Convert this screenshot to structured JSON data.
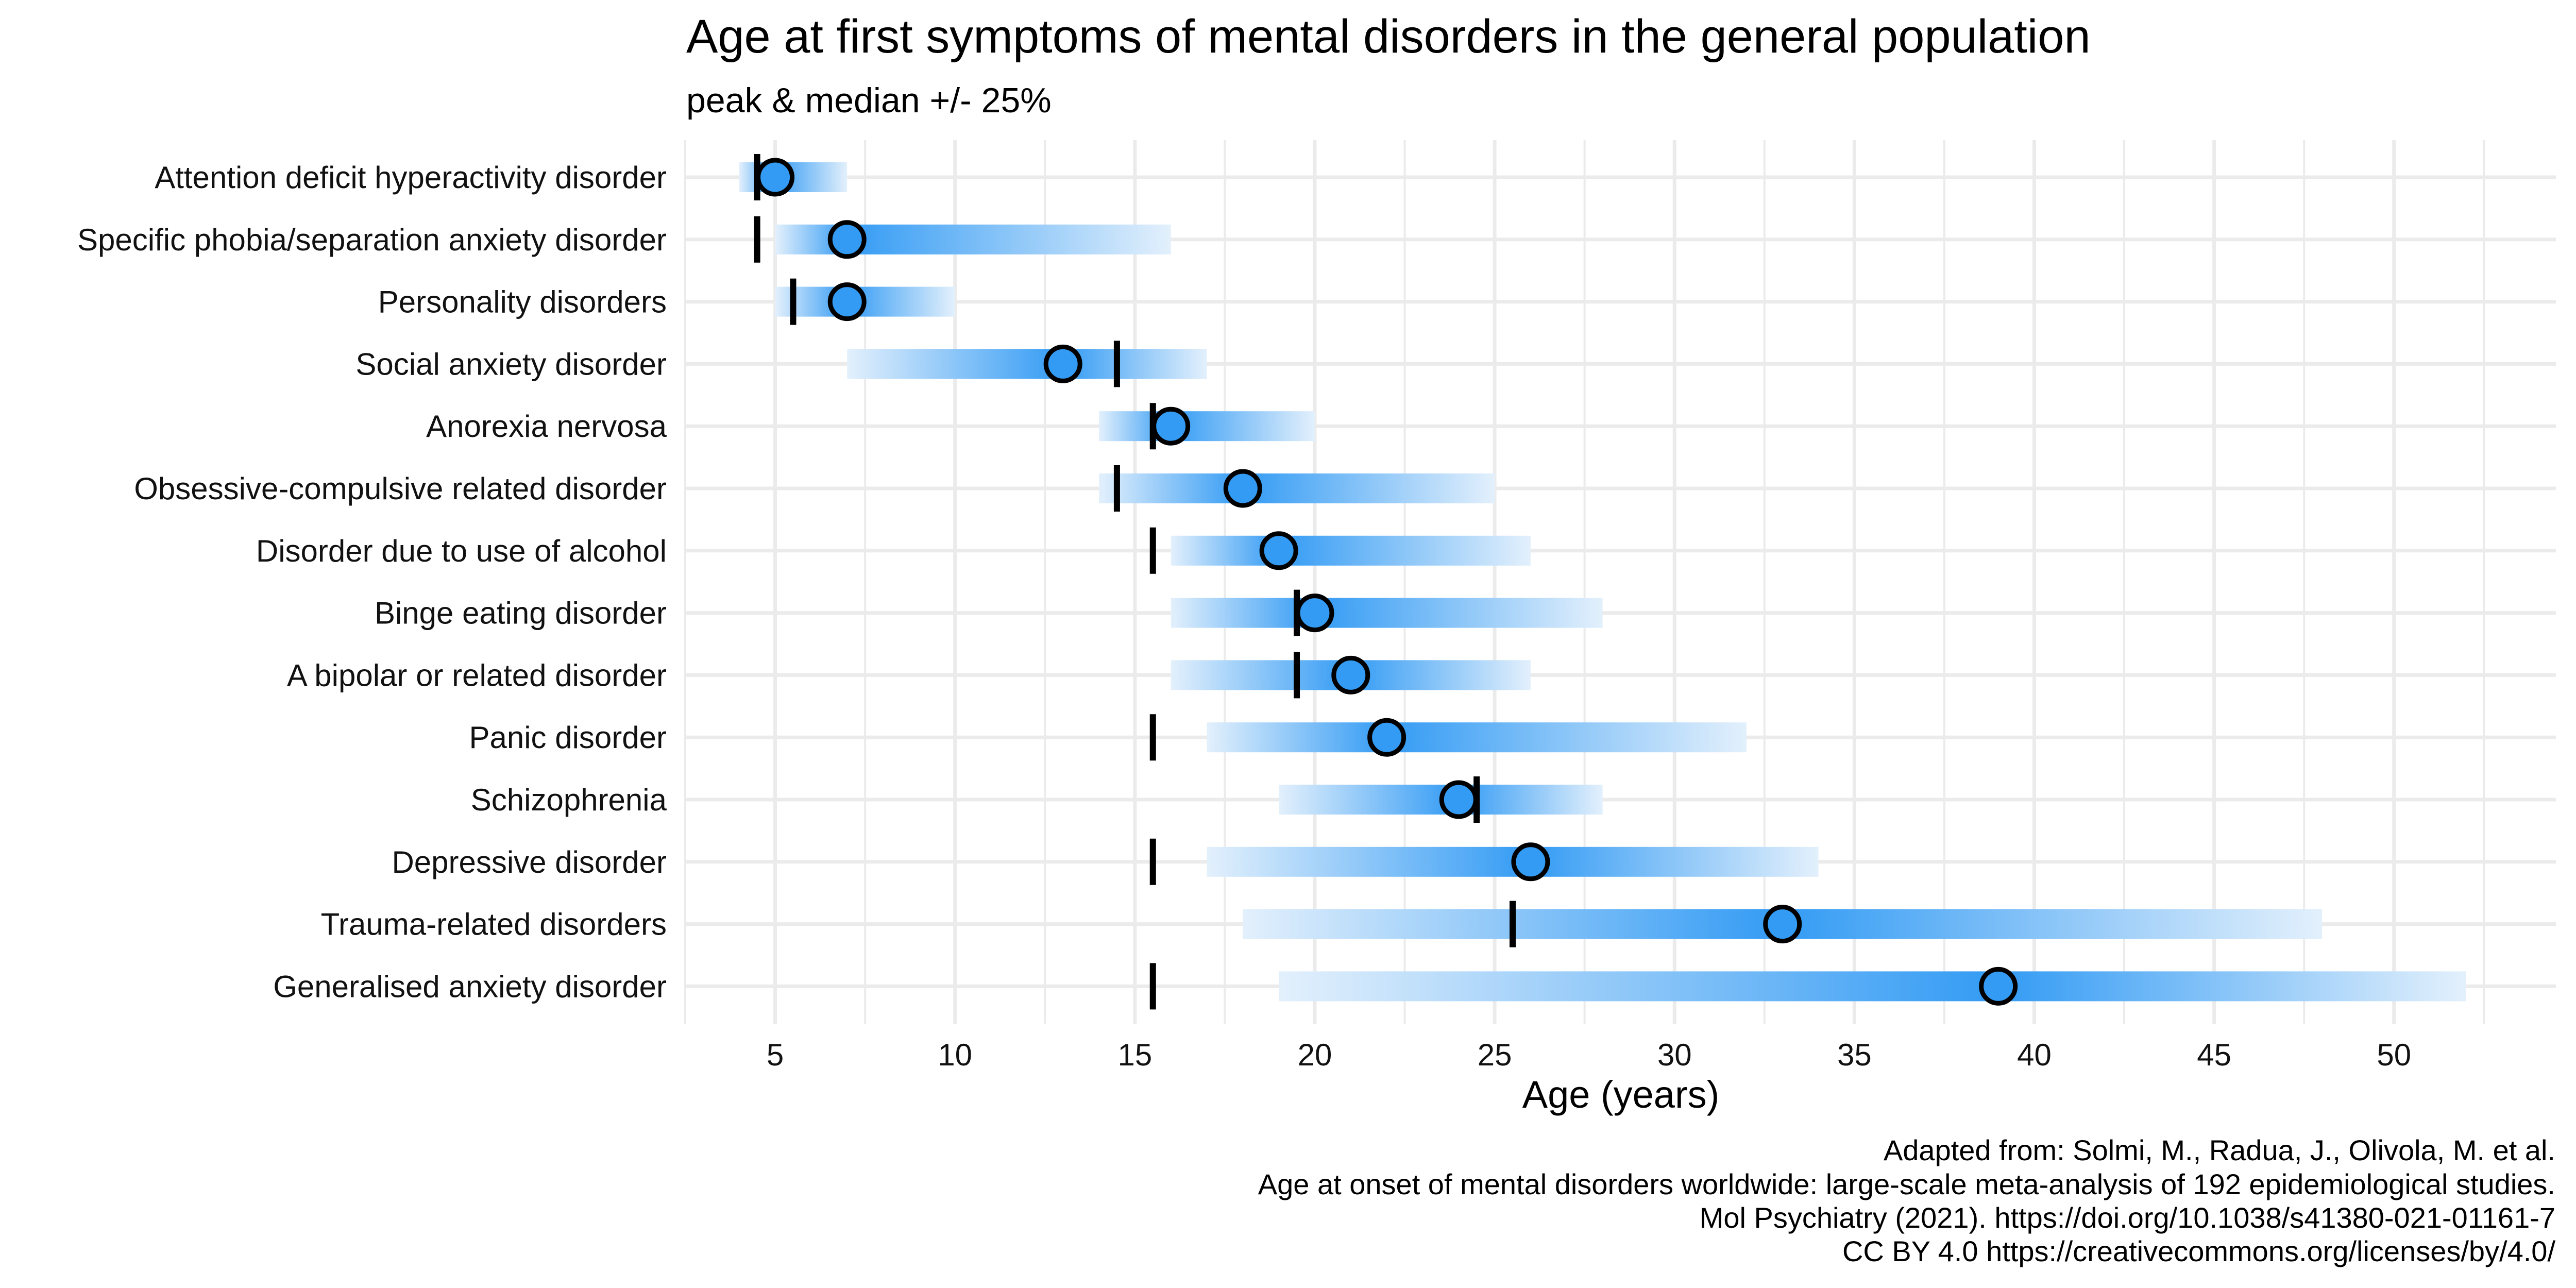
{
  "chart_data": {
    "type": "range-gradient-dot",
    "title": "Age at first symptoms of mental disorders in the general population",
    "subtitle": "peak & median +/- 25%",
    "xlabel": "Age (years)",
    "ylabel": "",
    "xlim": [
      2.5,
      54.5
    ],
    "x_ticks": [
      5,
      10,
      15,
      20,
      25,
      30,
      35,
      40,
      45,
      50
    ],
    "x_tick_labels": [
      "5",
      "10",
      "15",
      "20",
      "25",
      "30",
      "35",
      "40",
      "45",
      "50"
    ],
    "minor_ticks_step": 2.5,
    "grid": true,
    "legend": "none",
    "marks": {
      "bar": "range (median +/- 25%), gradient fading from peak to ends",
      "circle": "peak age",
      "vertical_line": "median age"
    },
    "colors": {
      "peak_fill": "#339BF4",
      "range_end": "#E3F0FC",
      "marker_stroke": "#000000",
      "grid": "#EBEBEB"
    },
    "categories": [
      "Attention deficit hyperactivity disorder",
      "Specific phobia/separation anxiety disorder",
      "Personality disorders",
      "Social anxiety disorder",
      "Anorexia nervosa",
      "Obsessive-compulsive related disorder",
      "Disorder due to use of alcohol",
      "Binge eating disorder",
      "A bipolar or related disorder",
      "Panic disorder",
      "Schizophrenia",
      "Depressive disorder",
      "Trauma-related disorders",
      "Generalised anxiety disorder"
    ],
    "series": [
      {
        "name": "range_start",
        "values": [
          4,
          5,
          5,
          7,
          14,
          14,
          16,
          16,
          16,
          17,
          19,
          17,
          18,
          19
        ]
      },
      {
        "name": "range_end",
        "values": [
          7,
          16,
          10,
          17,
          20,
          25,
          26,
          28,
          26,
          32,
          28,
          34,
          48,
          52
        ]
      },
      {
        "name": "peak",
        "values": [
          5,
          7,
          7,
          13,
          16,
          18,
          19,
          20,
          21,
          22,
          24,
          26,
          33,
          39
        ]
      },
      {
        "name": "median",
        "values": [
          4.5,
          4.5,
          5.5,
          14.5,
          15.5,
          14.5,
          15.5,
          19.5,
          19.5,
          15.5,
          24.5,
          15.5,
          25.5,
          15.5
        ]
      }
    ]
  },
  "caption": {
    "lines": [
      "Adapted from: Solmi, M., Radua, J., Olivola, M. et al.",
      "Age at onset of mental disorders worldwide: large-scale meta-analysis of 192 epidemiological studies.",
      "Mol Psychiatry (2021). https://doi.org/10.1038/s41380-021-01161-7",
      "CC BY 4.0 https://creativecommons.org/licenses/by/4.0/"
    ]
  }
}
